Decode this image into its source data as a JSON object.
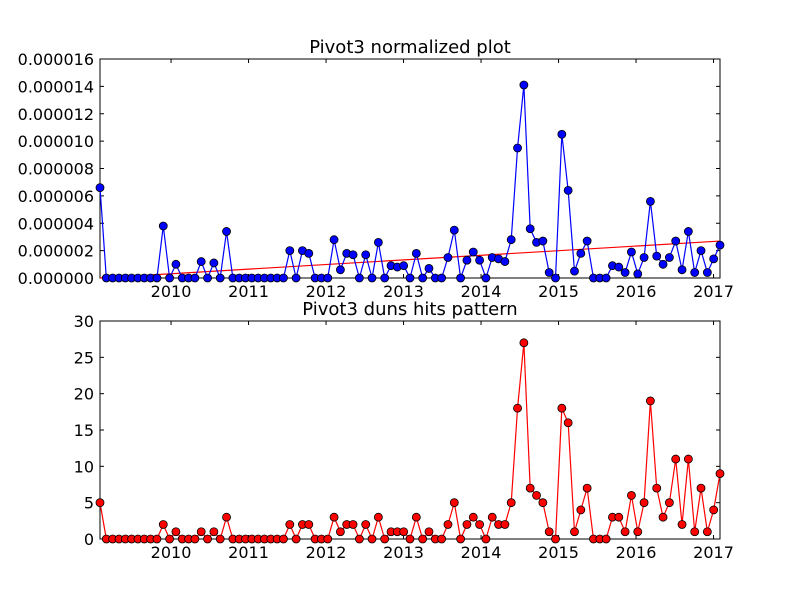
{
  "chart_data": [
    {
      "type": "line",
      "title": "Pivot3 normalized plot",
      "xlabel": "",
      "ylabel": "",
      "x_ticks": [
        "2010",
        "2011",
        "2012",
        "2013",
        "2014",
        "2015",
        "2016",
        "2017"
      ],
      "y_ticks": [
        "0.000000",
        "0.000002",
        "0.000004",
        "0.000006",
        "0.000008",
        "0.000010",
        "0.000012",
        "0.000014",
        "0.000016"
      ],
      "xlim": [
        "2009-02",
        "2017-02"
      ],
      "ylim": [
        0,
        1.6e-05
      ],
      "grid": false,
      "line_color": "#0000ff",
      "marker_color": "#0000ff",
      "trend_color": "#ff0000",
      "series": [
        {
          "values": [
            6.6e-06,
            0,
            0,
            0,
            0,
            0,
            0,
            0,
            0,
            0,
            3.8e-06,
            0,
            1e-06,
            0,
            0,
            0,
            1.2e-06,
            0,
            1.1e-06,
            0,
            3.4e-06,
            0,
            0,
            0,
            0,
            0,
            0,
            0,
            0,
            0,
            2e-06,
            0,
            2e-06,
            1.8e-06,
            0,
            0,
            0,
            2.8e-06,
            6e-07,
            1.8e-06,
            1.7e-06,
            0,
            1.7e-06,
            0,
            2.6e-06,
            0,
            9e-07,
            8e-07,
            9e-07,
            0,
            1.8e-06,
            0,
            7e-07,
            0,
            0,
            1.5e-06,
            3.5e-06,
            0,
            1.3e-06,
            1.9e-06,
            1.3e-06,
            0,
            1.5e-06,
            1.4e-06,
            1.2e-06,
            2.8e-06,
            9.5e-06,
            1.41e-05,
            3.6e-06,
            2.6e-06,
            2.7e-06,
            4e-07,
            0,
            1.05e-05,
            6.4e-06,
            5e-07,
            1.8e-06,
            2.7e-06,
            0,
            0,
            0,
            9e-07,
            8e-07,
            4e-07,
            1.9e-06,
            3e-07,
            1.5e-06,
            5.6e-06,
            1.6e-06,
            1e-06,
            1.5e-06,
            2.7e-06,
            6e-07,
            3.4e-06,
            4e-07,
            2e-06,
            4e-07,
            1.4e-06,
            2.4e-06
          ]
        }
      ],
      "trend_line": {
        "start": 0.0,
        "end": 2.7e-06
      }
    },
    {
      "type": "line",
      "title": "Pivot3 duns hits pattern",
      "xlabel": "",
      "ylabel": "",
      "x_ticks": [
        "2010",
        "2011",
        "2012",
        "2013",
        "2014",
        "2015",
        "2016",
        "2017"
      ],
      "y_ticks": [
        "0",
        "5",
        "10",
        "15",
        "20",
        "25",
        "30"
      ],
      "xlim": [
        "2009-02",
        "2017-02"
      ],
      "ylim": [
        0,
        30
      ],
      "grid": false,
      "line_color": "#ff0000",
      "marker_color": "#ff0000",
      "series": [
        {
          "values": [
            5,
            0,
            0,
            0,
            0,
            0,
            0,
            0,
            0,
            0,
            2,
            0,
            1,
            0,
            0,
            0,
            1,
            0,
            1,
            0,
            3,
            0,
            0,
            0,
            0,
            0,
            0,
            0,
            0,
            0,
            2,
            0,
            2,
            2,
            0,
            0,
            0,
            3,
            1,
            2,
            2,
            0,
            2,
            0,
            3,
            0,
            1,
            1,
            1,
            0,
            3,
            0,
            1,
            0,
            0,
            2,
            5,
            0,
            2,
            3,
            2,
            0,
            3,
            2,
            2,
            5,
            18,
            27,
            7,
            6,
            5,
            1,
            0,
            18,
            16,
            1,
            4,
            7,
            0,
            0,
            0,
            3,
            3,
            1,
            6,
            1,
            5,
            19,
            7,
            3,
            5,
            11,
            2,
            11,
            1,
            7,
            1,
            4,
            9
          ]
        }
      ]
    }
  ]
}
